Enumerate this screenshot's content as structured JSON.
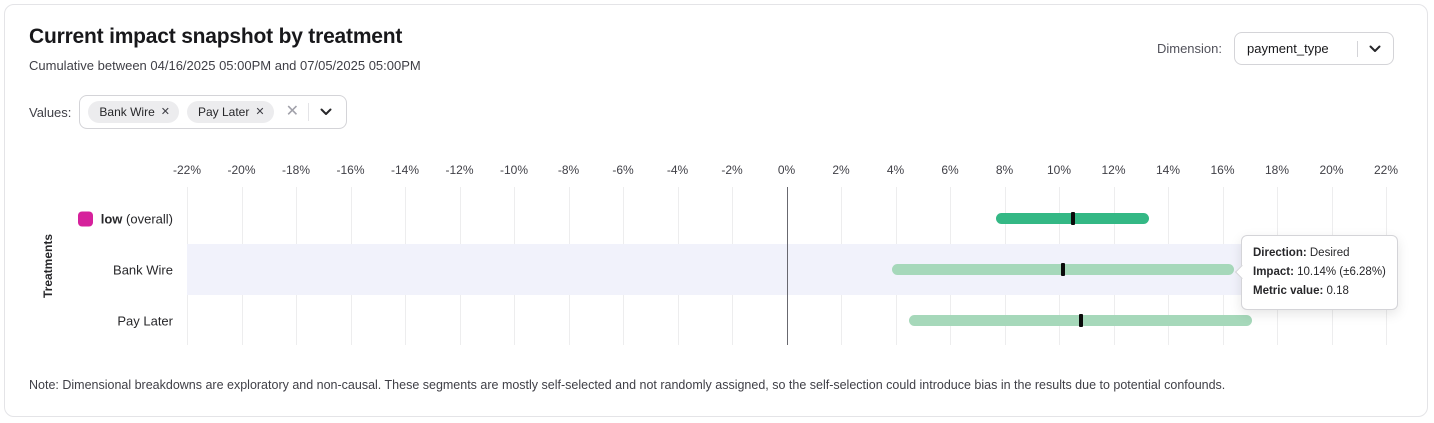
{
  "card": {
    "title": "Current impact snapshot by treatment",
    "subtitle": "Cumulative between 04/16/2025 05:00PM and 07/05/2025 05:00PM",
    "note": "Note: Dimensional breakdowns are exploratory and non-causal. These segments are mostly self-selected and not randomly assigned, so the self-selection could introduce bias in the results due to potential confounds."
  },
  "dimension": {
    "label": "Dimension:",
    "selected": "payment_type"
  },
  "values_filter": {
    "label": "Values:",
    "chips": [
      "Bank Wire",
      "Pay Later"
    ],
    "remove_icon": "✕",
    "clear_icon": "✕"
  },
  "tooltip": {
    "direction_label": "Direction:",
    "direction_value": "Desired",
    "impact_label": "Impact:",
    "impact_value": "10.14% (±6.28%)",
    "metric_label": "Metric value:",
    "metric_value": "0.18"
  },
  "chart_data": {
    "type": "bar",
    "subtype": "horizontal-interval",
    "title": "Current impact snapshot by treatment",
    "ylabel": "Treatments",
    "xlim": [
      -22,
      22
    ],
    "grid": true,
    "zero_line": true,
    "x_ticks": [
      "-22%",
      "-20%",
      "-18%",
      "-16%",
      "-14%",
      "-12%",
      "-10%",
      "-8%",
      "-6%",
      "-4%",
      "-2%",
      "0%",
      "2%",
      "4%",
      "6%",
      "8%",
      "10%",
      "12%",
      "14%",
      "16%",
      "18%",
      "20%",
      "22%"
    ],
    "marker_color": "#0a0a0a",
    "highlight_band_color": "#f1f2fb",
    "series": [
      {
        "name": "low (overall)",
        "bold_label": "low",
        "label_suffix": "(overall)",
        "legend_color": "#d6219c",
        "bar_color": "#34b885",
        "impact_pct": 10.5,
        "ci_low_pct": 7.7,
        "ci_high_pct": 13.3
      },
      {
        "name": "Bank Wire",
        "bar_color": "#a6d8ba",
        "impact_pct": 10.14,
        "ci_low_pct": 3.86,
        "ci_high_pct": 16.42,
        "highlighted": true
      },
      {
        "name": "Pay Later",
        "bar_color": "#a6d8ba",
        "impact_pct": 10.8,
        "ci_low_pct": 4.5,
        "ci_high_pct": 17.1
      }
    ]
  }
}
